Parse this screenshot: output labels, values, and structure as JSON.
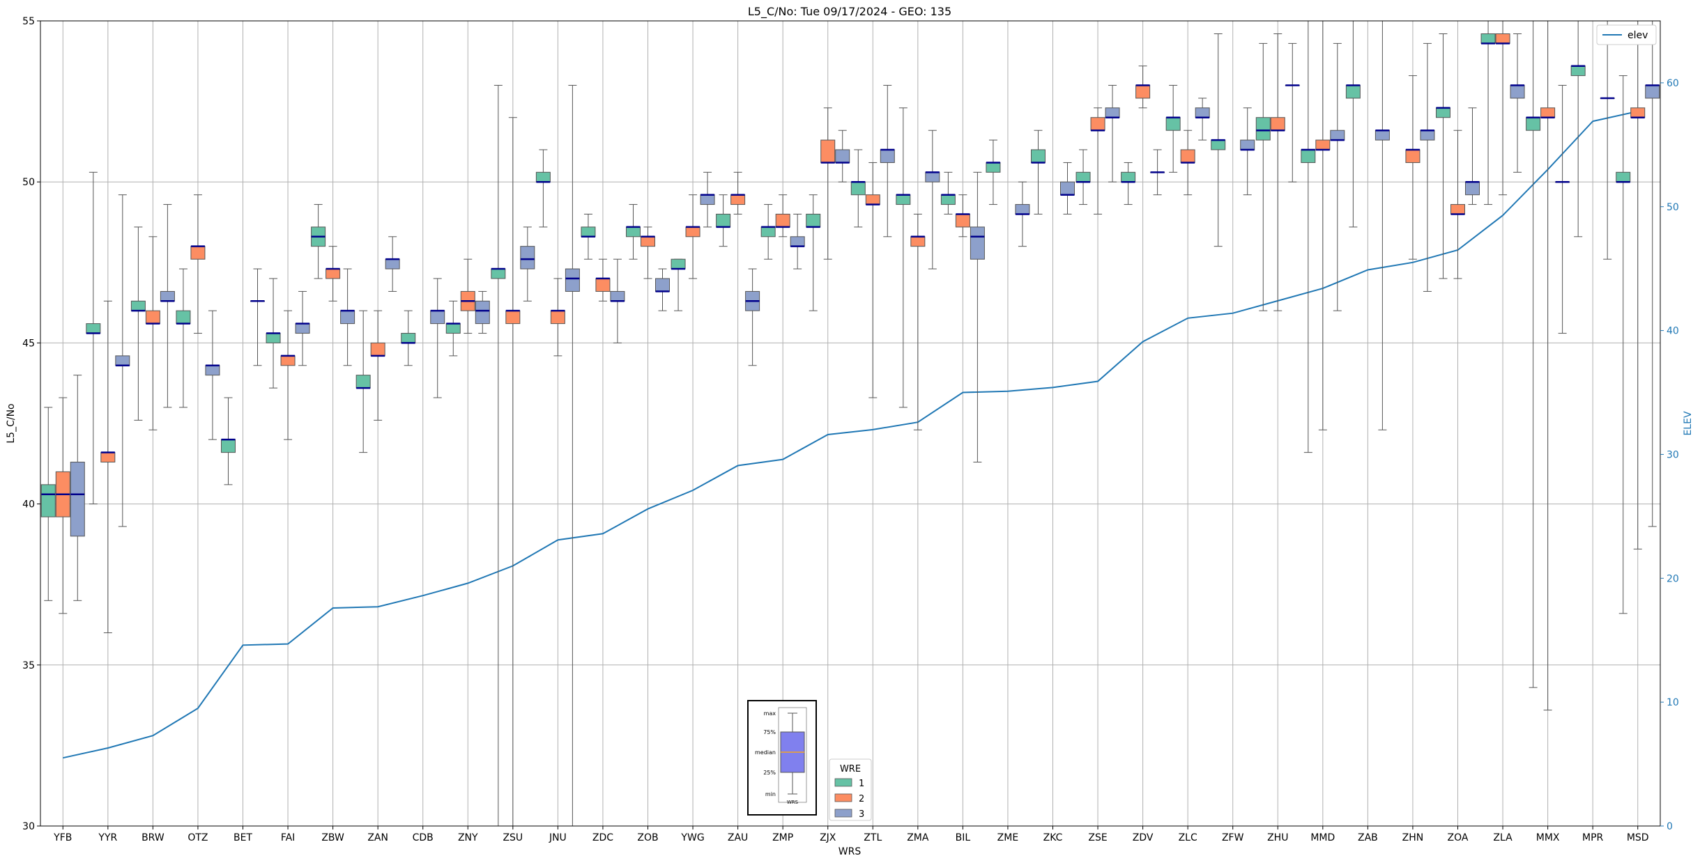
{
  "chart_data": {
    "type": "box",
    "title": "L5_C/No: Tue 09/17/2024 - GEO: 135",
    "xlabel": "WRS",
    "ylabel": "L5_C/No",
    "y2label": "ELEV",
    "ylim": [
      30,
      55
    ],
    "y2lim": [
      0,
      65
    ],
    "yticks": [
      30,
      35,
      40,
      45,
      50,
      55
    ],
    "y2ticks": [
      0,
      10,
      20,
      30,
      40,
      50,
      60
    ],
    "grid": true,
    "categories": [
      "YFB",
      "YYR",
      "BRW",
      "OTZ",
      "BET",
      "FAI",
      "ZBW",
      "ZAN",
      "CDB",
      "ZNY",
      "ZSU",
      "JNU",
      "ZDC",
      "ZOB",
      "YWG",
      "ZAU",
      "ZMP",
      "ZJX",
      "ZTL",
      "ZMA",
      "BIL",
      "ZME",
      "ZKC",
      "ZSE",
      "ZDV",
      "ZLC",
      "ZFW",
      "ZHU",
      "MMD",
      "ZAB",
      "ZHN",
      "ZOA",
      "ZLA",
      "MMX",
      "MPR",
      "MSD"
    ],
    "legend": {
      "title": "WRE",
      "placement": "bottom-center",
      "entries": [
        {
          "label": "1",
          "color": "#66c2a5"
        },
        {
          "label": "2",
          "color": "#fc8d62"
        },
        {
          "label": "3",
          "color": "#8da0cb"
        }
      ]
    },
    "line_legend": {
      "label": "elev",
      "color": "#1f77b4",
      "placement": "top-right"
    },
    "key_box": {
      "labels": [
        "max",
        "75%",
        "median",
        "25%",
        "min"
      ],
      "xlabel": "WRS",
      "fill": "#8080ee"
    },
    "series": [
      {
        "name": "1",
        "color": "#66c2a5",
        "boxes": [
          {
            "cat": 0,
            "min": 37.0,
            "q1": 39.6,
            "median": 40.3,
            "q3": 40.6,
            "max": 43.0
          },
          {
            "cat": 1,
            "min": 40.0,
            "q1": 45.3,
            "median": 45.3,
            "q3": 45.6,
            "max": 50.3
          },
          {
            "cat": 2,
            "min": 42.6,
            "q1": 46.0,
            "median": 46.0,
            "q3": 46.3,
            "max": 48.6
          },
          {
            "cat": 3,
            "min": 43.0,
            "q1": 45.6,
            "median": 45.6,
            "q3": 46.0,
            "max": 47.3
          },
          {
            "cat": 4,
            "min": 40.6,
            "q1": 41.6,
            "median": 42.0,
            "q3": 42.0,
            "max": 43.3
          },
          {
            "cat": 5,
            "min": 43.6,
            "q1": 45.0,
            "median": 45.3,
            "q3": 45.3,
            "max": 47.0
          },
          {
            "cat": 6,
            "min": 47.0,
            "q1": 48.0,
            "median": 48.3,
            "q3": 48.6,
            "max": 49.3
          },
          {
            "cat": 7,
            "min": 41.6,
            "q1": 43.6,
            "median": 43.6,
            "q3": 44.0,
            "max": 46.0
          },
          {
            "cat": 8,
            "min": 44.3,
            "q1": 45.0,
            "median": 45.0,
            "q3": 45.3,
            "max": 46.0
          },
          {
            "cat": 9,
            "min": 44.6,
            "q1": 45.3,
            "median": 45.6,
            "q3": 45.6,
            "max": 46.3
          },
          {
            "cat": 10,
            "min": 30.0,
            "q1": 47.0,
            "median": 47.3,
            "q3": 47.3,
            "max": 53.0
          },
          {
            "cat": 11,
            "min": 48.6,
            "q1": 50.0,
            "median": 50.0,
            "q3": 50.3,
            "max": 51.0
          },
          {
            "cat": 12,
            "min": 47.6,
            "q1": 48.3,
            "median": 48.3,
            "q3": 48.6,
            "max": 49.0
          },
          {
            "cat": 13,
            "min": 47.6,
            "q1": 48.3,
            "median": 48.6,
            "q3": 48.6,
            "max": 49.3
          },
          {
            "cat": 14,
            "min": 46.0,
            "q1": 47.3,
            "median": 47.3,
            "q3": 47.6,
            "max": 47.6
          },
          {
            "cat": 15,
            "min": 48.0,
            "q1": 48.6,
            "median": 48.6,
            "q3": 49.0,
            "max": 49.6
          },
          {
            "cat": 16,
            "min": 47.6,
            "q1": 48.3,
            "median": 48.6,
            "q3": 48.6,
            "max": 49.3
          },
          {
            "cat": 17,
            "min": 46.0,
            "q1": 48.6,
            "median": 48.6,
            "q3": 49.0,
            "max": 49.6
          },
          {
            "cat": 18,
            "min": 48.6,
            "q1": 49.6,
            "median": 50.0,
            "q3": 50.0,
            "max": 51.0
          },
          {
            "cat": 19,
            "min": 43.0,
            "q1": 49.3,
            "median": 49.6,
            "q3": 49.6,
            "max": 52.3
          },
          {
            "cat": 20,
            "min": 49.0,
            "q1": 49.3,
            "median": 49.6,
            "q3": 49.6,
            "max": 50.3
          },
          {
            "cat": 21,
            "min": 49.3,
            "q1": 50.3,
            "median": 50.6,
            "q3": 50.6,
            "max": 51.3
          },
          {
            "cat": 22,
            "min": 49.0,
            "q1": 50.6,
            "median": 50.6,
            "q3": 51.0,
            "max": 51.6
          },
          {
            "cat": 23,
            "min": 49.3,
            "q1": 50.0,
            "median": 50.0,
            "q3": 50.3,
            "max": 51.0
          },
          {
            "cat": 24,
            "min": 49.3,
            "q1": 50.0,
            "median": 50.0,
            "q3": 50.3,
            "max": 50.6
          },
          {
            "cat": 25,
            "min": 50.3,
            "q1": 51.6,
            "median": 52.0,
            "q3": 52.0,
            "max": 53.0
          },
          {
            "cat": 26,
            "min": 48.0,
            "q1": 51.0,
            "median": 51.3,
            "q3": 51.3,
            "max": 54.6
          },
          {
            "cat": 27,
            "min": 46.0,
            "q1": 51.3,
            "median": 51.6,
            "q3": 52.0,
            "max": 54.3
          },
          {
            "cat": 28,
            "min": 41.6,
            "q1": 50.6,
            "median": 51.0,
            "q3": 51.0,
            "max": 55.0
          },
          {
            "cat": 29,
            "min": 48.6,
            "q1": 52.6,
            "median": 53.0,
            "q3": 53.0,
            "max": 55.0
          },
          {
            "cat": 31,
            "min": 47.0,
            "q1": 52.0,
            "median": 52.3,
            "q3": 52.3,
            "max": 54.6
          },
          {
            "cat": 32,
            "min": 49.3,
            "q1": 54.3,
            "median": 54.3,
            "q3": 54.6,
            "max": 55.0
          },
          {
            "cat": 33,
            "min": 34.3,
            "q1": 51.6,
            "median": 52.0,
            "q3": 52.0,
            "max": 55.0
          },
          {
            "cat": 34,
            "min": 48.3,
            "q1": 53.3,
            "median": 53.6,
            "q3": 53.6,
            "max": 55.0
          },
          {
            "cat": 35,
            "min": 36.6,
            "q1": 50.0,
            "median": 50.0,
            "q3": 50.3,
            "max": 53.3
          }
        ]
      },
      {
        "name": "2",
        "color": "#fc8d62",
        "boxes": [
          {
            "cat": 0,
            "min": 36.6,
            "q1": 39.6,
            "median": 40.3,
            "q3": 41.0,
            "max": 43.3
          },
          {
            "cat": 1,
            "min": 36.0,
            "q1": 41.3,
            "median": 41.6,
            "q3": 41.6,
            "max": 46.3
          },
          {
            "cat": 2,
            "min": 42.3,
            "q1": 45.6,
            "median": 45.6,
            "q3": 46.0,
            "max": 48.3
          },
          {
            "cat": 3,
            "min": 45.3,
            "q1": 47.6,
            "median": 48.0,
            "q3": 48.0,
            "max": 49.6
          },
          {
            "cat": 5,
            "min": 42.0,
            "q1": 44.3,
            "median": 44.6,
            "q3": 44.6,
            "max": 46.0
          },
          {
            "cat": 6,
            "min": 46.3,
            "q1": 47.0,
            "median": 47.3,
            "q3": 47.3,
            "max": 48.0
          },
          {
            "cat": 7,
            "min": 42.6,
            "q1": 44.6,
            "median": 44.6,
            "q3": 45.0,
            "max": 46.0
          },
          {
            "cat": 9,
            "min": 45.3,
            "q1": 46.0,
            "median": 46.3,
            "q3": 46.6,
            "max": 47.6
          },
          {
            "cat": 10,
            "min": 30.0,
            "q1": 45.6,
            "median": 46.0,
            "q3": 46.0,
            "max": 52.0
          },
          {
            "cat": 11,
            "min": 44.6,
            "q1": 45.6,
            "median": 46.0,
            "q3": 46.0,
            "max": 47.0
          },
          {
            "cat": 12,
            "min": 46.3,
            "q1": 46.6,
            "median": 47.0,
            "q3": 47.0,
            "max": 47.6
          },
          {
            "cat": 13,
            "min": 47.0,
            "q1": 48.0,
            "median": 48.3,
            "q3": 48.3,
            "max": 48.6
          },
          {
            "cat": 14,
            "min": 47.0,
            "q1": 48.3,
            "median": 48.6,
            "q3": 48.6,
            "max": 49.6
          },
          {
            "cat": 15,
            "min": 49.0,
            "q1": 49.3,
            "median": 49.6,
            "q3": 49.6,
            "max": 50.3
          },
          {
            "cat": 16,
            "min": 48.3,
            "q1": 48.6,
            "median": 48.6,
            "q3": 49.0,
            "max": 49.6
          },
          {
            "cat": 17,
            "min": 47.6,
            "q1": 50.6,
            "median": 50.6,
            "q3": 51.3,
            "max": 52.3
          },
          {
            "cat": 18,
            "min": 43.3,
            "q1": 49.3,
            "median": 49.3,
            "q3": 49.6,
            "max": 50.6
          },
          {
            "cat": 19,
            "min": 42.3,
            "q1": 48.0,
            "median": 48.3,
            "q3": 48.3,
            "max": 49.0
          },
          {
            "cat": 20,
            "min": 48.3,
            "q1": 48.6,
            "median": 49.0,
            "q3": 49.0,
            "max": 49.6
          },
          {
            "cat": 23,
            "min": 49.0,
            "q1": 51.6,
            "median": 51.6,
            "q3": 52.0,
            "max": 52.3
          },
          {
            "cat": 24,
            "min": 52.3,
            "q1": 52.6,
            "median": 53.0,
            "q3": 53.0,
            "max": 53.6
          },
          {
            "cat": 25,
            "min": 49.6,
            "q1": 50.6,
            "median": 50.6,
            "q3": 51.0,
            "max": 51.6
          },
          {
            "cat": 27,
            "min": 46.0,
            "q1": 51.6,
            "median": 51.6,
            "q3": 52.0,
            "max": 54.6
          },
          {
            "cat": 28,
            "min": 42.3,
            "q1": 51.0,
            "median": 51.0,
            "q3": 51.3,
            "max": 55.0
          },
          {
            "cat": 30,
            "min": 47.6,
            "q1": 50.6,
            "median": 51.0,
            "q3": 51.0,
            "max": 53.3
          },
          {
            "cat": 31,
            "min": 47.0,
            "q1": 49.0,
            "median": 49.0,
            "q3": 49.3,
            "max": 51.6
          },
          {
            "cat": 32,
            "min": 49.6,
            "q1": 54.3,
            "median": 54.3,
            "q3": 54.6,
            "max": 55.0
          },
          {
            "cat": 33,
            "min": 33.6,
            "q1": 52.0,
            "median": 52.0,
            "q3": 52.3,
            "max": 55.0
          },
          {
            "cat": 35,
            "min": 38.6,
            "q1": 52.0,
            "median": 52.0,
            "q3": 52.3,
            "max": 55.0
          }
        ]
      },
      {
        "name": "3",
        "color": "#8da0cb",
        "boxes": [
          {
            "cat": 0,
            "min": 37.0,
            "q1": 39.0,
            "median": 40.3,
            "q3": 41.3,
            "max": 44.0
          },
          {
            "cat": 1,
            "min": 39.3,
            "q1": 44.3,
            "median": 44.3,
            "q3": 44.6,
            "max": 49.6
          },
          {
            "cat": 2,
            "min": 43.0,
            "q1": 46.3,
            "median": 46.3,
            "q3": 46.6,
            "max": 49.3
          },
          {
            "cat": 3,
            "min": 42.0,
            "q1": 44.0,
            "median": 44.3,
            "q3": 44.3,
            "max": 46.0
          },
          {
            "cat": 4,
            "min": 44.3,
            "q1": 46.3,
            "median": 46.3,
            "q3": 46.3,
            "max": 47.3
          },
          {
            "cat": 5,
            "min": 44.3,
            "q1": 45.3,
            "median": 45.6,
            "q3": 45.6,
            "max": 46.6
          },
          {
            "cat": 6,
            "min": 44.3,
            "q1": 45.6,
            "median": 46.0,
            "q3": 46.0,
            "max": 47.3
          },
          {
            "cat": 7,
            "min": 46.6,
            "q1": 47.3,
            "median": 47.6,
            "q3": 47.6,
            "max": 48.3
          },
          {
            "cat": 8,
            "min": 43.3,
            "q1": 45.6,
            "median": 46.0,
            "q3": 46.0,
            "max": 47.0
          },
          {
            "cat": 9,
            "min": 45.3,
            "q1": 45.6,
            "median": 46.0,
            "q3": 46.3,
            "max": 46.6
          },
          {
            "cat": 10,
            "min": 46.3,
            "q1": 47.3,
            "median": 47.6,
            "q3": 48.0,
            "max": 48.6
          },
          {
            "cat": 11,
            "min": 30.0,
            "q1": 46.6,
            "median": 47.0,
            "q3": 47.3,
            "max": 53.0
          },
          {
            "cat": 12,
            "min": 45.0,
            "q1": 46.3,
            "median": 46.3,
            "q3": 46.6,
            "max": 47.6
          },
          {
            "cat": 13,
            "min": 46.0,
            "q1": 46.6,
            "median": 46.6,
            "q3": 47.0,
            "max": 47.3
          },
          {
            "cat": 14,
            "min": 48.6,
            "q1": 49.3,
            "median": 49.6,
            "q3": 49.6,
            "max": 50.3
          },
          {
            "cat": 15,
            "min": 44.3,
            "q1": 46.0,
            "median": 46.3,
            "q3": 46.6,
            "max": 47.3
          },
          {
            "cat": 16,
            "min": 47.3,
            "q1": 48.0,
            "median": 48.0,
            "q3": 48.3,
            "max": 49.0
          },
          {
            "cat": 17,
            "min": 50.0,
            "q1": 50.6,
            "median": 50.6,
            "q3": 51.0,
            "max": 51.6
          },
          {
            "cat": 18,
            "min": 48.3,
            "q1": 50.6,
            "median": 51.0,
            "q3": 51.0,
            "max": 53.0
          },
          {
            "cat": 19,
            "min": 47.3,
            "q1": 50.0,
            "median": 50.3,
            "q3": 50.3,
            "max": 51.6
          },
          {
            "cat": 20,
            "min": 41.3,
            "q1": 47.6,
            "median": 48.3,
            "q3": 48.6,
            "max": 50.3
          },
          {
            "cat": 21,
            "min": 48.0,
            "q1": 49.0,
            "median": 49.0,
            "q3": 49.3,
            "max": 50.0
          },
          {
            "cat": 22,
            "min": 49.0,
            "q1": 49.6,
            "median": 49.6,
            "q3": 50.0,
            "max": 50.6
          },
          {
            "cat": 23,
            "min": 50.0,
            "q1": 52.0,
            "median": 52.0,
            "q3": 52.3,
            "max": 53.0
          },
          {
            "cat": 24,
            "min": 49.6,
            "q1": 50.3,
            "median": 50.3,
            "q3": 50.3,
            "max": 51.0
          },
          {
            "cat": 25,
            "min": 51.3,
            "q1": 52.0,
            "median": 52.0,
            "q3": 52.3,
            "max": 52.6
          },
          {
            "cat": 26,
            "min": 49.6,
            "q1": 51.0,
            "median": 51.0,
            "q3": 51.3,
            "max": 52.3
          },
          {
            "cat": 27,
            "min": 50.0,
            "q1": 53.0,
            "median": 53.0,
            "q3": 53.0,
            "max": 54.3
          },
          {
            "cat": 28,
            "min": 46.0,
            "q1": 51.3,
            "median": 51.3,
            "q3": 51.6,
            "max": 54.3
          },
          {
            "cat": 29,
            "min": 42.3,
            "q1": 51.3,
            "median": 51.6,
            "q3": 51.6,
            "max": 55.0
          },
          {
            "cat": 30,
            "min": 46.6,
            "q1": 51.3,
            "median": 51.6,
            "q3": 51.6,
            "max": 54.3
          },
          {
            "cat": 31,
            "min": 49.3,
            "q1": 49.6,
            "median": 50.0,
            "q3": 50.0,
            "max": 52.3
          },
          {
            "cat": 32,
            "min": 50.3,
            "q1": 52.6,
            "median": 53.0,
            "q3": 53.0,
            "max": 54.6
          },
          {
            "cat": 33,
            "min": 45.3,
            "q1": 50.0,
            "median": 50.0,
            "q3": 50.0,
            "max": 53.0
          },
          {
            "cat": 34,
            "min": 47.6,
            "q1": 52.6,
            "median": 52.6,
            "q3": 52.6,
            "max": 55.0
          },
          {
            "cat": 35,
            "min": 39.3,
            "q1": 52.6,
            "median": 53.0,
            "q3": 53.0,
            "max": 55.0
          }
        ]
      }
    ],
    "elev_line": {
      "name": "elev",
      "axis": "right",
      "color": "#1f77b4",
      "values": [
        5.5,
        6.3,
        7.3,
        9.5,
        14.6,
        14.7,
        17.6,
        17.7,
        18.6,
        19.6,
        21.0,
        23.1,
        23.6,
        25.6,
        27.1,
        29.1,
        29.6,
        31.6,
        32.0,
        32.6,
        35.0,
        35.1,
        35.4,
        35.9,
        39.1,
        41.0,
        41.4,
        42.4,
        43.4,
        44.9,
        45.5,
        46.5,
        49.3,
        53.0,
        56.9,
        57.7
      ]
    }
  }
}
